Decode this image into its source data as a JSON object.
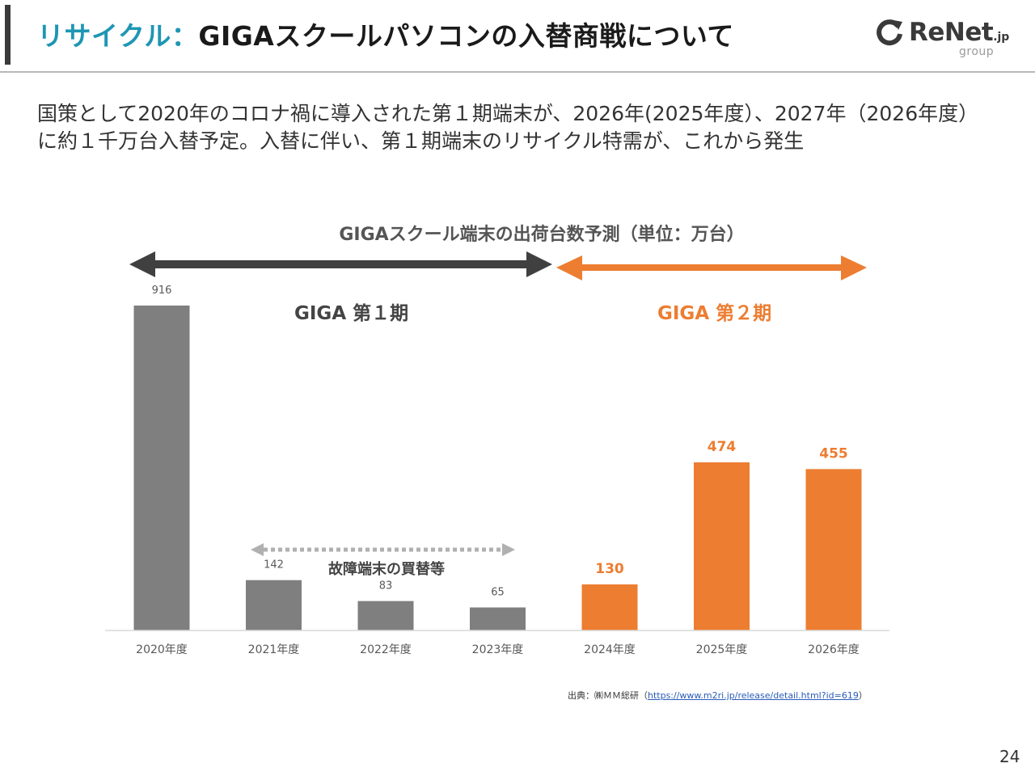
{
  "header": {
    "title_accent": "リサイクル：",
    "title_main": "GIGAスクールパソコンの入替商戦について",
    "logo_brand": "ReNet",
    "logo_tld": ".jp",
    "logo_group": "group"
  },
  "intro_text": "国策として2020年のコロナ禍に導入された第１期端末が、2026年(2025年度）、2027年（2026年度）に約１千万台入替予定。入替に伴い、第１期端末のリサイクル特需が、これから発生",
  "period_labels": {
    "first": "GIGA 第１期",
    "second": "GIGA 第２期"
  },
  "note_text": "故障端末の買替等",
  "source": {
    "prefix": "出典：㈱ＭＭ総研（",
    "url": "https://www.m2ri.jp/release/detail.html?id=619",
    "suffix": "）"
  },
  "page_number": "24",
  "colors": {
    "accent_teal": "#1e96b4",
    "gray_series": "#7f7f7f",
    "orange_series": "#ed7d31",
    "dark_arrow": "#404040"
  },
  "chart_data": {
    "type": "bar",
    "title": "GIGAスクール端末の出荷台数予測（単位：万台）",
    "categories": [
      "2020年度",
      "2021年度",
      "2022年度",
      "2023年度",
      "2024年度",
      "2025年度",
      "2026年度"
    ],
    "values": [
      916,
      142,
      83,
      65,
      130,
      474,
      455
    ],
    "bar_colors": [
      "#7f7f7f",
      "#7f7f7f",
      "#7f7f7f",
      "#7f7f7f",
      "#ed7d31",
      "#ed7d31",
      "#ed7d31"
    ],
    "label_colors": [
      "#595959",
      "#595959",
      "#595959",
      "#595959",
      "#ed7d31",
      "#ed7d31",
      "#ed7d31"
    ],
    "label_bold": [
      false,
      false,
      false,
      false,
      true,
      true,
      true
    ],
    "ylim": [
      0,
      916
    ],
    "grid": false,
    "legend": "none"
  }
}
